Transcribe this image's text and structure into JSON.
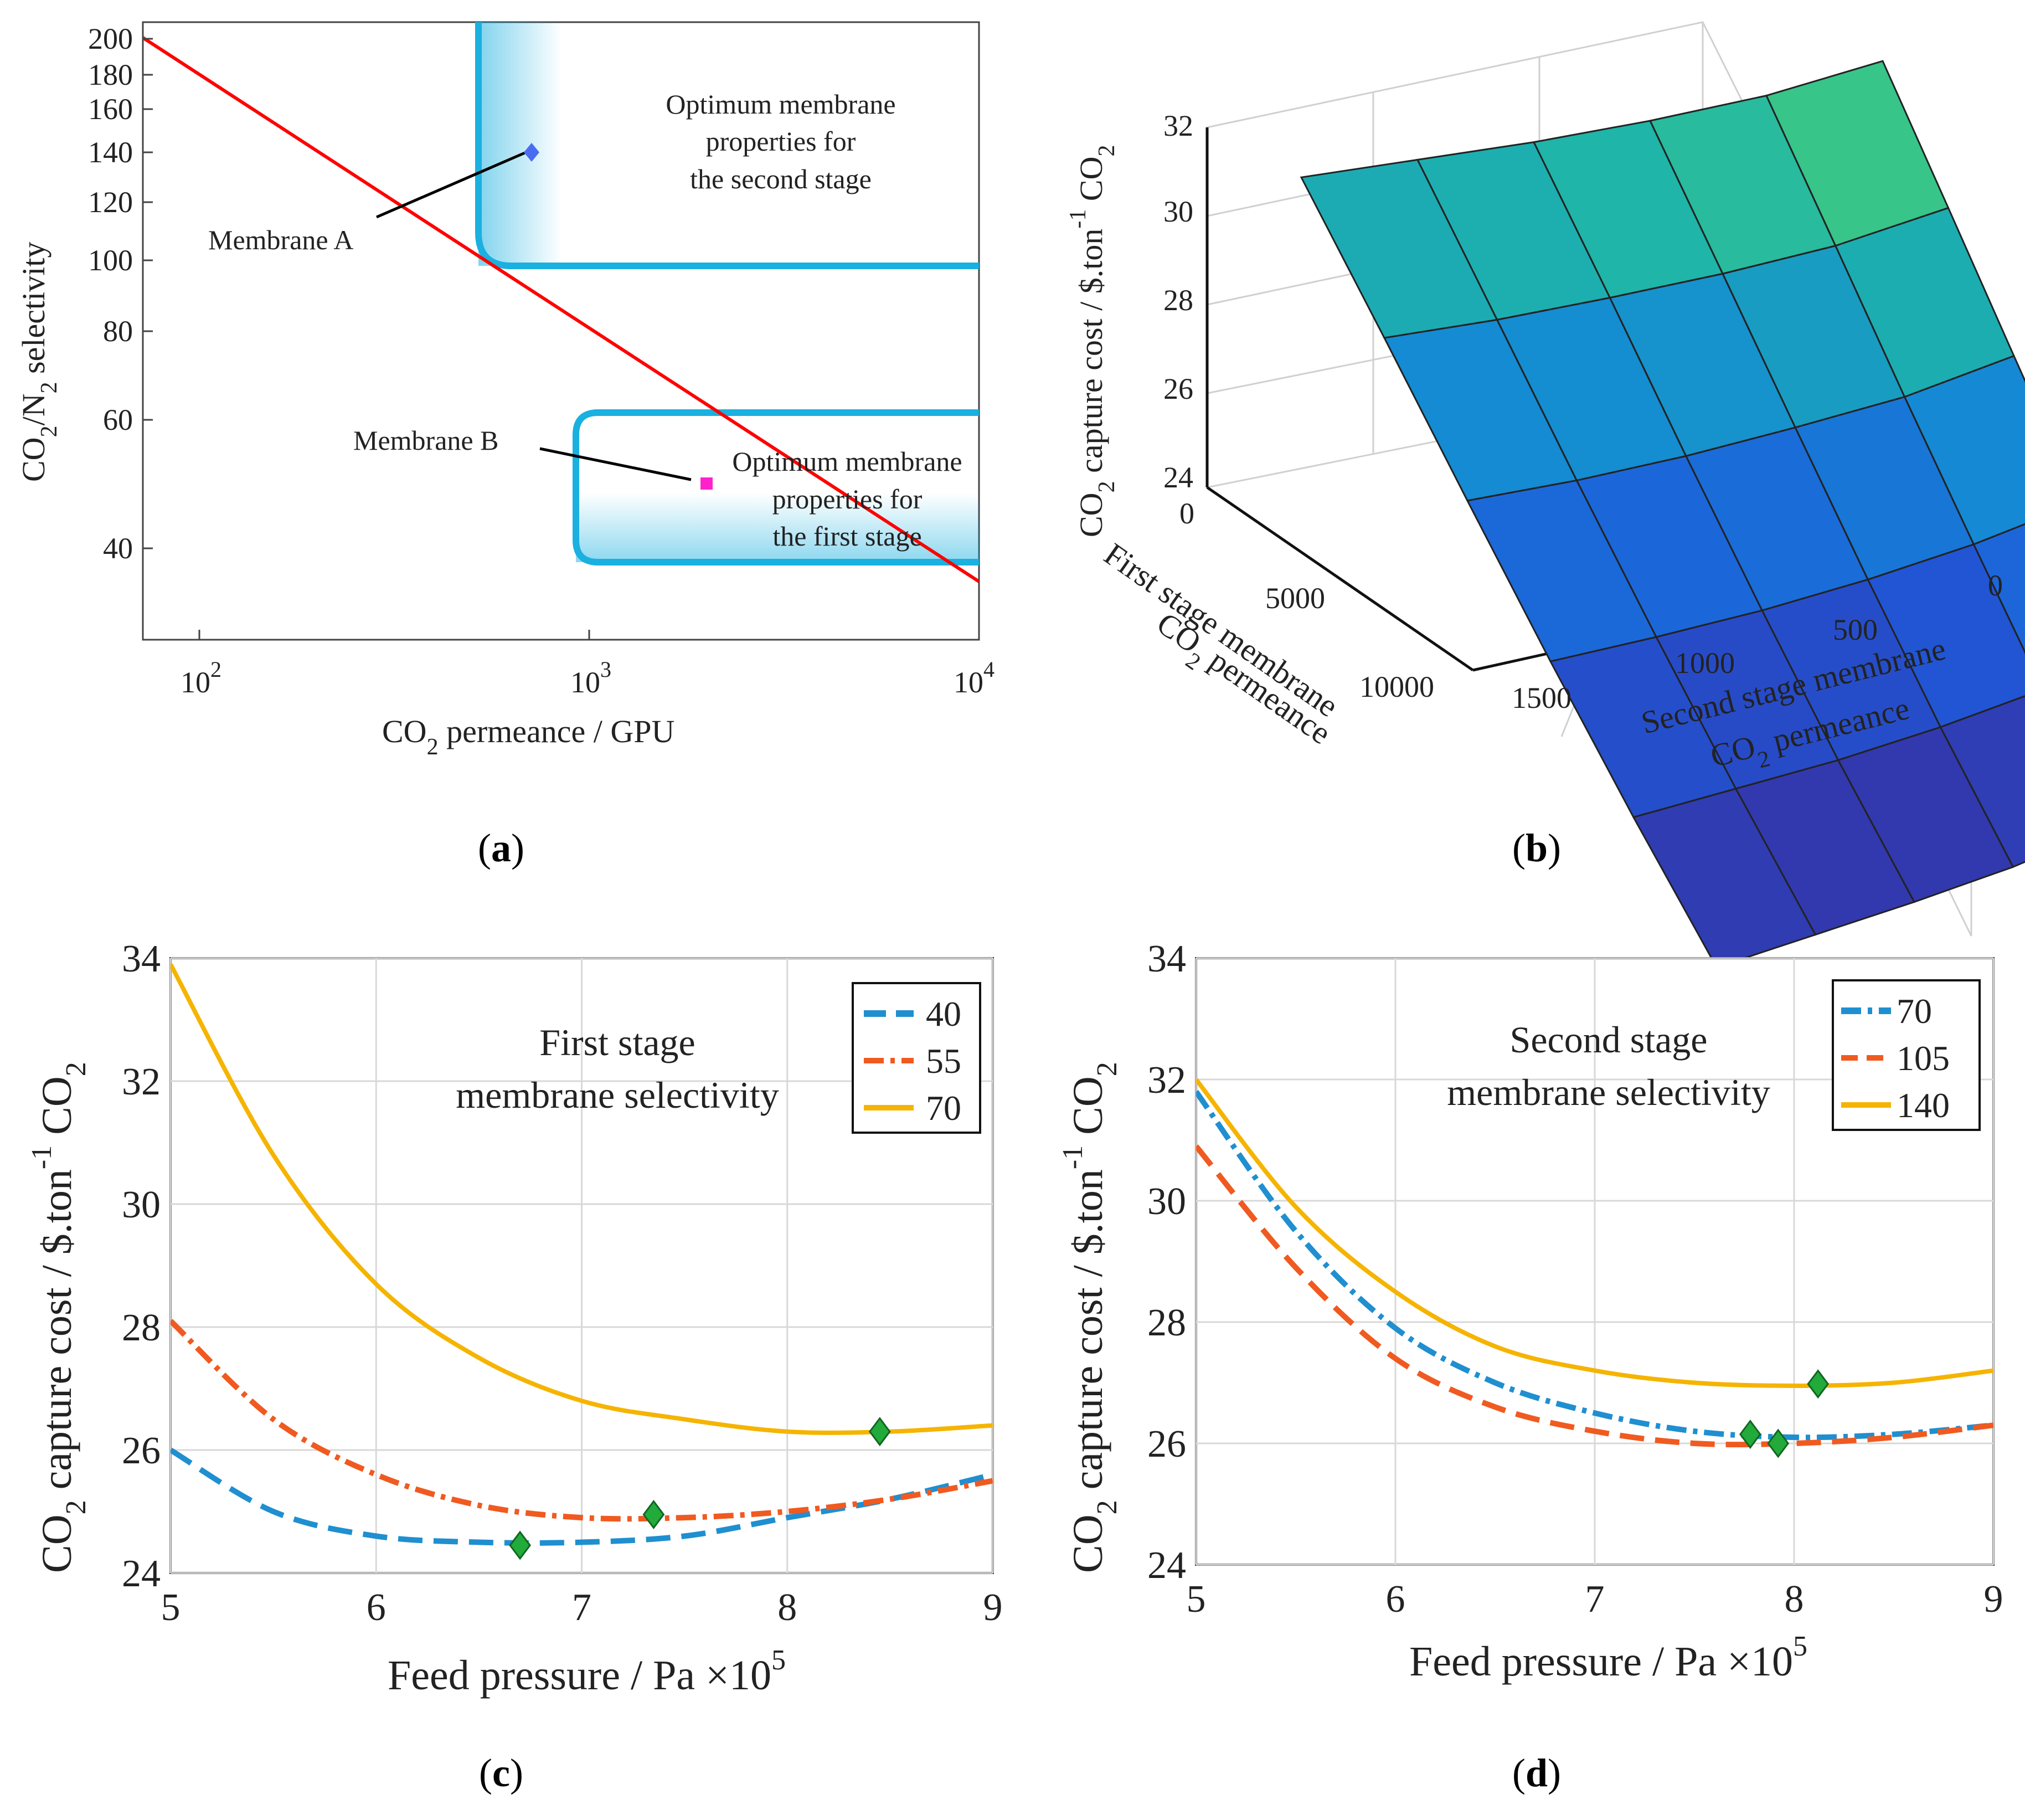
{
  "figure": {
    "panels": [
      {
        "label": "(a)",
        "bold": "a"
      },
      {
        "label": "(b)",
        "bold": "b"
      },
      {
        "label": "(c)",
        "bold": "c"
      },
      {
        "label": "(d)",
        "bold": "d"
      }
    ]
  },
  "chart_data": [
    {
      "id": "a",
      "type": "line",
      "title": "",
      "xlabel": "CO2 permeance / GPU",
      "ylabel": "CO2/N2 selectivity",
      "xscale": "log",
      "yscale": "log",
      "xlim": [
        70,
        10000
      ],
      "ylim": [
        32,
        210
      ],
      "xticks": [
        {
          "value": 100,
          "label": "10^2"
        },
        {
          "value": 1000,
          "label": "10^3"
        },
        {
          "value": 10000,
          "label": "10^4"
        }
      ],
      "yticks": [
        40,
        60,
        80,
        100,
        120,
        140,
        160,
        180,
        200
      ],
      "series": [
        {
          "name": "upper bound",
          "color": "#ff0000",
          "x": [
            70,
            10000
          ],
          "y": [
            200,
            36
          ]
        }
      ],
      "regions": [
        {
          "name": "second stage region",
          "color": "#1ab0e0",
          "x_min": 520,
          "y_min": 97,
          "text": [
            "Optimum membrane",
            "properties for",
            "the second stage"
          ]
        },
        {
          "name": "first stage region",
          "color": "#1ab0e0",
          "x_min": 950,
          "y_min": 39,
          "y_max": 61,
          "text": [
            "Optimum membrane",
            "properties for",
            "the first stage"
          ]
        }
      ],
      "points": [
        {
          "name": "Membrane A",
          "x": 700,
          "y": 140,
          "color": "#4a6cf0",
          "marker": "diamond"
        },
        {
          "name": "Membrane B",
          "x": 2000,
          "y": 50,
          "color": "#ff22cc",
          "marker": "square"
        }
      ]
    },
    {
      "id": "b",
      "type": "surface",
      "title": "",
      "zlabel": "CO2 capture cost / $.ton-1 CO2",
      "xlabel": "First stage membrane CO2 permeance",
      "ylabel": "Second stage membrane CO2 permeance",
      "xticks": [
        0,
        5000,
        10000
      ],
      "yticks": [
        0,
        500,
        1000,
        1500
      ],
      "zticks": [
        24,
        26,
        28,
        30,
        32
      ],
      "zlim": [
        24,
        32
      ],
      "surface_rows": [
        [
          29.0,
          29.2,
          29.4,
          29.8,
          30.4,
          31.5
        ],
        [
          27.8,
          27.8,
          28.0,
          28.3,
          28.8,
          29.8
        ],
        [
          26.6,
          26.5,
          26.6,
          26.9,
          27.3,
          28.2
        ],
        [
          25.6,
          25.5,
          25.5,
          25.7,
          26.1,
          26.8
        ],
        [
          24.9,
          24.8,
          24.7,
          24.8,
          25.1,
          25.9
        ],
        [
          24.5,
          24.4,
          24.3,
          24.3,
          24.6,
          25.5
        ]
      ]
    },
    {
      "id": "c",
      "type": "line",
      "title": "First stage membrane selectivity",
      "title_lines": [
        "First stage",
        "membrane selectivity"
      ],
      "xlabel": "Feed pressure / Pa ×10^5",
      "ylabel": "CO2 capture cost / $.ton-1 CO2",
      "xlim": [
        5,
        9
      ],
      "ylim": [
        24,
        34
      ],
      "xticks": [
        5,
        6,
        7,
        8,
        9
      ],
      "yticks": [
        24,
        26,
        28,
        30,
        32,
        34
      ],
      "grid": true,
      "legend_position": "top-right",
      "series": [
        {
          "name": "40",
          "color": "#1f8fd0",
          "dash": "dashed",
          "x": [
            5,
            5.5,
            6,
            6.5,
            7,
            7.5,
            8,
            8.5,
            9
          ],
          "y": [
            26.0,
            25.0,
            24.6,
            24.5,
            24.5,
            24.6,
            24.9,
            25.2,
            25.6
          ],
          "optimum": {
            "x": 6.7,
            "y": 24.45
          }
        },
        {
          "name": "55",
          "color": "#f05a20",
          "dash": "dashdot",
          "x": [
            5,
            5.5,
            6,
            6.5,
            7,
            7.5,
            8,
            8.5,
            9
          ],
          "y": [
            28.1,
            26.5,
            25.6,
            25.1,
            24.9,
            24.9,
            25.0,
            25.2,
            25.5
          ],
          "optimum": {
            "x": 7.35,
            "y": 24.95
          }
        },
        {
          "name": "70",
          "color": "#f5b400",
          "dash": "solid",
          "x": [
            5,
            5.5,
            6,
            6.5,
            7,
            7.5,
            8,
            8.5,
            9
          ],
          "y": [
            33.9,
            30.8,
            28.7,
            27.5,
            26.8,
            26.5,
            26.3,
            26.3,
            26.4
          ],
          "optimum": {
            "x": 8.45,
            "y": 26.3
          }
        }
      ]
    },
    {
      "id": "d",
      "type": "line",
      "title": "Second stage membrane selectivity",
      "title_lines": [
        "Second stage",
        "membrane selectivity"
      ],
      "xlabel": "Feed pressure / Pa ×10^5",
      "ylabel": "CO2 capture cost / $.ton-1 CO2",
      "xlim": [
        5,
        9
      ],
      "ylim": [
        24,
        34
      ],
      "xticks": [
        5,
        6,
        7,
        8,
        9
      ],
      "yticks": [
        24,
        26,
        28,
        30,
        32,
        34
      ],
      "grid": true,
      "legend_position": "top-right",
      "series": [
        {
          "name": "70",
          "color": "#1f8fd0",
          "dash": "dashdot",
          "x": [
            5,
            5.5,
            6,
            6.5,
            7,
            7.5,
            8,
            8.5,
            9
          ],
          "y": [
            31.8,
            29.5,
            27.9,
            27.0,
            26.5,
            26.2,
            26.1,
            26.15,
            26.3
          ],
          "optimum": {
            "x": 7.78,
            "y": 26.15
          }
        },
        {
          "name": "105",
          "color": "#f05a20",
          "dash": "dashed",
          "x": [
            5,
            5.5,
            6,
            6.5,
            7,
            7.5,
            8,
            8.5,
            9
          ],
          "y": [
            30.9,
            28.9,
            27.4,
            26.6,
            26.2,
            26.0,
            26.0,
            26.1,
            26.3
          ],
          "optimum": {
            "x": 7.92,
            "y": 26.0
          }
        },
        {
          "name": "140",
          "color": "#f5b400",
          "dash": "solid",
          "x": [
            5,
            5.5,
            6,
            6.5,
            7,
            7.5,
            8,
            8.5,
            9
          ],
          "y": [
            32.0,
            29.9,
            28.5,
            27.6,
            27.2,
            27.0,
            26.95,
            27.0,
            27.2
          ],
          "optimum": {
            "x": 8.12,
            "y": 26.98
          }
        }
      ]
    }
  ],
  "panel_a": {
    "xlab": {
      "pre": "CO",
      "sub": "2",
      "post": " permeance / GPU"
    },
    "ylab": {
      "a": "CO",
      "s1": "2",
      "b": "/N",
      "s2": "2",
      "c": " selectivity"
    },
    "xtick_base": "10",
    "xtick_exp": [
      "2",
      "3",
      "4"
    ],
    "ytick_labels": [
      "40",
      "60",
      "80",
      "100",
      "120",
      "140",
      "160",
      "180",
      "200"
    ],
    "region2_lines": [
      "Optimum membrane",
      "properties for",
      "the second stage"
    ],
    "region1_lines": [
      "Optimum membrane",
      "properties for",
      "the first stage"
    ],
    "label_a": "Membrane A",
    "label_b": "Membrane B"
  },
  "panel_b": {
    "zlab": {
      "a": "CO",
      "s1": "2",
      "b": " capture cost / $.ton",
      "sup": "-1",
      "c": " CO",
      "s2": "2"
    },
    "ztick_labels": [
      "24",
      "26",
      "28",
      "30",
      "32"
    ],
    "xtick_labels": [
      "0",
      "5000",
      "10000"
    ],
    "ytick_labels": [
      "0",
      "500",
      "1000",
      "1500"
    ],
    "xlab1": "First stage membrane",
    "xlab2": {
      "a": "CO",
      "s": "2",
      "b": " permeance"
    },
    "ylab1": "Second stage membrane",
    "ylab2": {
      "a": "CO",
      "s": "2",
      "b": " permeance"
    }
  },
  "panel_cd": {
    "ylab": {
      "a": "CO",
      "s1": "2",
      "b": " capture cost / $.ton",
      "sup": "-1",
      "c": " CO",
      "s2": "2"
    },
    "xlab": {
      "a": "Feed pressure / Pa ",
      "times": "×10",
      "sup": "5"
    },
    "xtick_labels": [
      "5",
      "6",
      "7",
      "8",
      "9"
    ],
    "ytick_labels": [
      "24",
      "26",
      "28",
      "30",
      "32",
      "34"
    ]
  }
}
